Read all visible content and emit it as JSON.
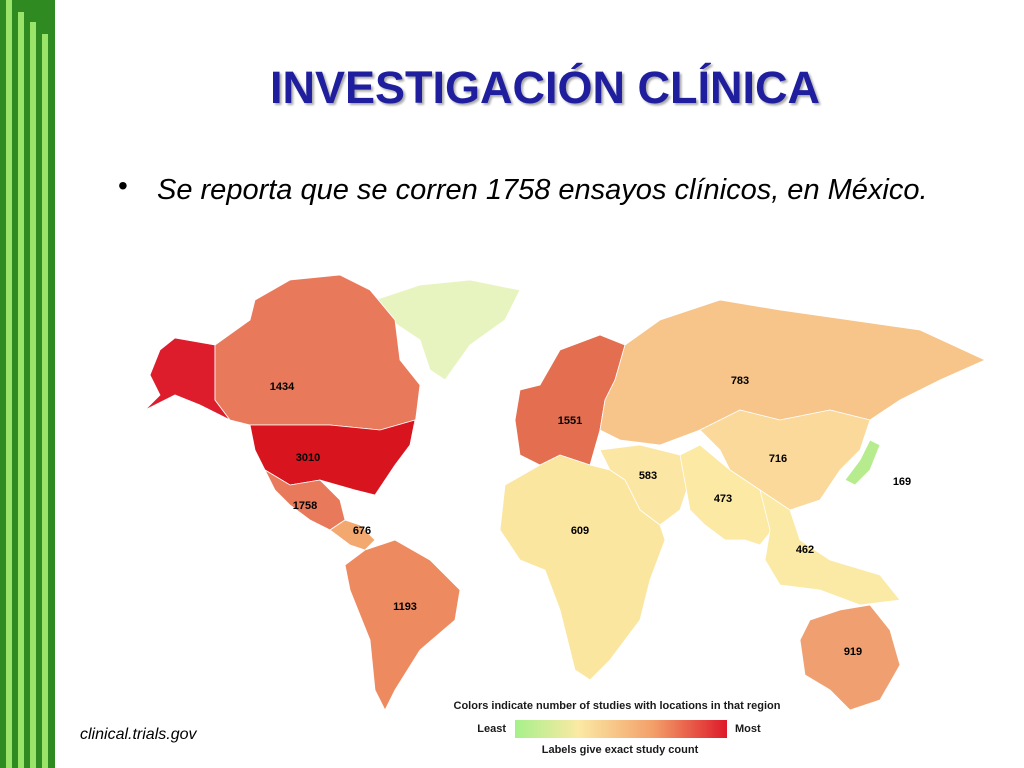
{
  "title": "INVESTIGACIÓN CLÍNICA",
  "bullet": "Se reporta que se corren 1758 ensayos clínicos, en México.",
  "map": {
    "regions": [
      {
        "value": 1434,
        "color": "#e9795b"
      },
      {
        "value": 3010,
        "color": "#d8151f"
      },
      {
        "value": 1758,
        "color": "#e9795b"
      },
      {
        "value": 676,
        "color": "#f3a870"
      },
      {
        "value": 1193,
        "color": "#ee8a5f"
      },
      {
        "value": 1551,
        "color": "#e46e50"
      },
      {
        "value": 783,
        "color": "#f7c48a"
      },
      {
        "value": 716,
        "color": "#fad99a"
      },
      {
        "value": 169,
        "color": "#b6ec8e"
      },
      {
        "value": 583,
        "color": "#fbe6a4"
      },
      {
        "value": 473,
        "color": "#fbe9a4"
      },
      {
        "value": 462,
        "color": "#fbeaa6"
      },
      {
        "value": 609,
        "color": "#fbe6a0"
      },
      {
        "value": 919,
        "color": "#f0a070"
      }
    ]
  },
  "legend": {
    "caption": "Colors indicate number of studies with locations in that region",
    "least": "Least",
    "most": "Most",
    "note": "Labels give exact study count"
  },
  "source": "clinical.trials.gov"
}
